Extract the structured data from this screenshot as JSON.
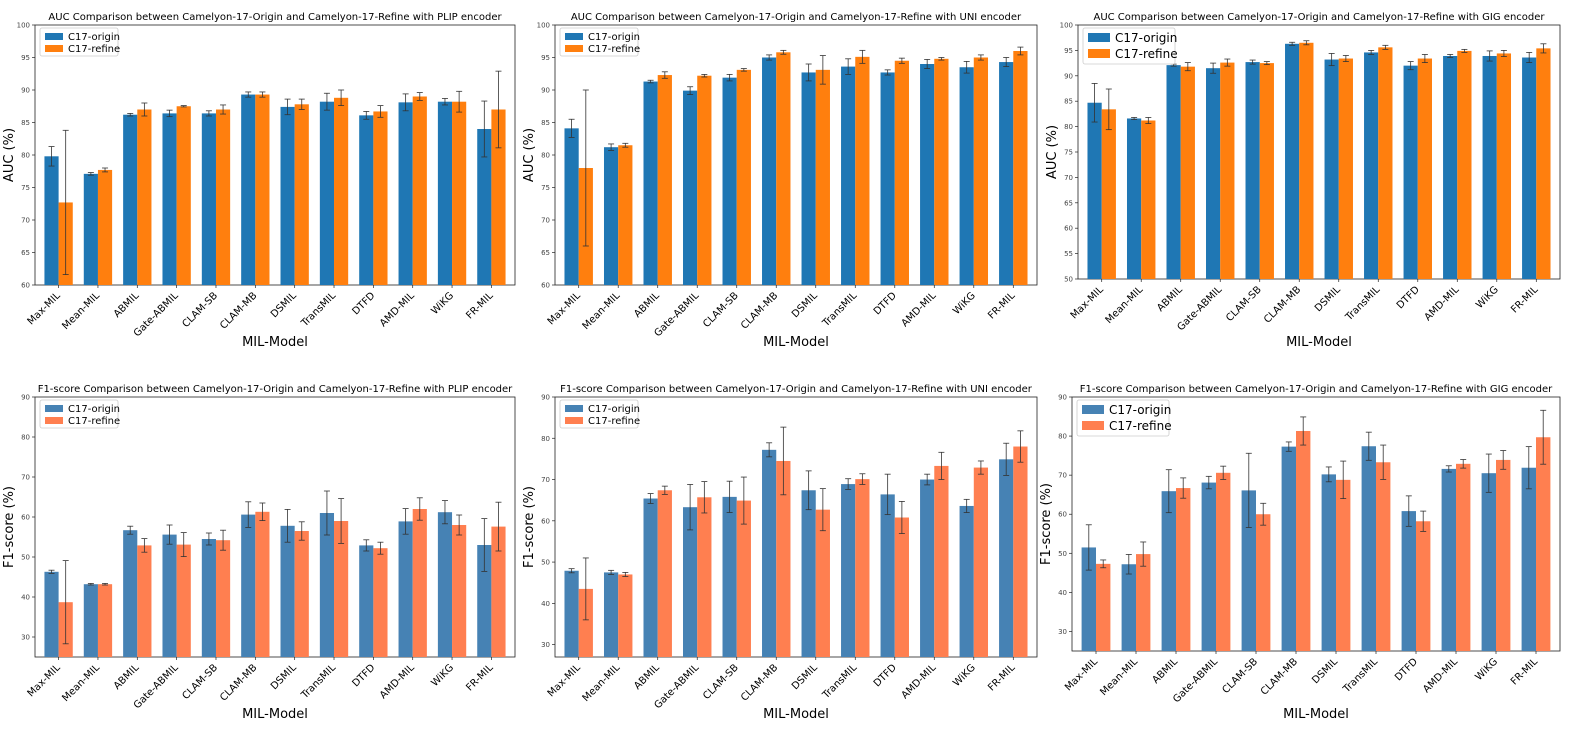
{
  "chart_data": [
    {
      "type": "bar",
      "title": "AUC Comparison between Camelyon-17-Origin and Camelyon-17-Refine with PLIP encoder",
      "xlabel": "MIL-Model",
      "ylabel": "AUC (%)",
      "ylim": [
        60,
        100
      ],
      "yticks": [
        "60",
        "65",
        "70",
        "75",
        "80",
        "85",
        "90",
        "95",
        "100"
      ],
      "ytick_values": [
        60,
        65,
        70,
        75,
        80,
        85,
        90,
        95,
        100
      ],
      "categories": [
        "Max-MIL",
        "Mean-MIL",
        "ABMIL",
        "Gate-ABMIL",
        "CLAM-SB",
        "CLAM-MB",
        "DSMIL",
        "TransMIL",
        "DTFD",
        "AMD-MIL",
        "WiKG",
        "FR-MIL"
      ],
      "legend": "top-left",
      "series": [
        {
          "name": "C17-origin",
          "color": "#1f77b4",
          "values": [
            79.8,
            77.1,
            86.2,
            86.4,
            86.4,
            89.3,
            87.4,
            88.2,
            86.1,
            88.1,
            88.2,
            84.0
          ],
          "errors": [
            1.5,
            0.2,
            0.2,
            0.5,
            0.4,
            0.4,
            1.2,
            1.3,
            0.6,
            1.3,
            0.5,
            4.3
          ]
        },
        {
          "name": "C17-refine",
          "color": "#ff7f0e",
          "values": [
            72.7,
            77.7,
            87.0,
            87.5,
            87.0,
            89.3,
            87.8,
            88.8,
            86.7,
            89.0,
            88.2,
            87.0
          ],
          "errors": [
            11.1,
            0.3,
            1.0,
            0.1,
            0.7,
            0.4,
            0.8,
            1.2,
            0.9,
            0.6,
            1.6,
            5.9
          ]
        }
      ]
    },
    {
      "type": "bar",
      "title": "AUC Comparison between Camelyon-17-Origin and Camelyon-17-Refine with UNI encoder",
      "xlabel": "MIL-Model",
      "ylabel": "AUC (%)",
      "ylim": [
        60,
        100
      ],
      "yticks": [
        "60",
        "65",
        "70",
        "75",
        "80",
        "85",
        "90",
        "95",
        "100"
      ],
      "ytick_values": [
        60,
        65,
        70,
        75,
        80,
        85,
        90,
        95,
        100
      ],
      "categories": [
        "Max-MIL",
        "Mean-MIL",
        "ABMIL",
        "Gate-ABMIL",
        "CLAM-SB",
        "CLAM-MB",
        "DSMIL",
        "TransMIL",
        "DTFD",
        "AMD-MIL",
        "WiKG",
        "FR-MIL"
      ],
      "legend": "top-left",
      "series": [
        {
          "name": "C17-origin",
          "color": "#1f77b4",
          "values": [
            84.1,
            81.2,
            91.3,
            89.9,
            91.9,
            95.0,
            92.7,
            93.6,
            92.7,
            94.0,
            93.5,
            94.3
          ],
          "errors": [
            1.4,
            0.5,
            0.2,
            0.6,
            0.5,
            0.4,
            1.3,
            1.2,
            0.4,
            0.7,
            0.9,
            0.7
          ]
        },
        {
          "name": "C17-refine",
          "color": "#ff7f0e",
          "values": [
            78.0,
            81.5,
            92.3,
            92.2,
            93.1,
            95.8,
            93.1,
            95.1,
            94.5,
            94.8,
            95.0,
            96.0
          ],
          "errors": [
            12.0,
            0.3,
            0.5,
            0.2,
            0.2,
            0.3,
            2.2,
            1.0,
            0.4,
            0.2,
            0.4,
            0.6
          ]
        }
      ]
    },
    {
      "type": "bar",
      "title": "AUC Comparison between Camelyon-17-Origin and Camelyon-17-Refine with GIG encoder",
      "xlabel": "MIL-Model",
      "ylabel": "AUC (%)",
      "ylim": [
        50,
        100
      ],
      "yticks": [
        "50",
        "55",
        "60",
        "65",
        "70",
        "75",
        "80",
        "85",
        "90",
        "95",
        "100"
      ],
      "ytick_values": [
        50,
        55,
        60,
        65,
        70,
        75,
        80,
        85,
        90,
        95,
        100
      ],
      "categories": [
        "Max-MIL",
        "Mean-MIL",
        "ABMIL",
        "Gate-ABMIL",
        "CLAM-SB",
        "CLAM-MB",
        "DSMIL",
        "TransMIL",
        "DTFD",
        "AMD-MIL",
        "WiKG",
        "FR-MIL"
      ],
      "legend": "top-left",
      "series": [
        {
          "name": "C17-origin",
          "color": "#1f77b4",
          "values": [
            84.7,
            81.6,
            92.1,
            91.5,
            92.7,
            96.3,
            93.2,
            94.6,
            92.0,
            93.9,
            93.9,
            93.6
          ],
          "errors": [
            3.8,
            0.2,
            0.2,
            1.0,
            0.4,
            0.3,
            1.2,
            0.4,
            0.8,
            0.3,
            1.0,
            1.0
          ]
        },
        {
          "name": "C17-refine",
          "color": "#ff7f0e",
          "values": [
            83.4,
            81.2,
            91.8,
            92.6,
            92.5,
            96.5,
            93.4,
            95.6,
            93.4,
            94.9,
            94.4,
            95.4
          ],
          "errors": [
            4.0,
            0.6,
            0.8,
            0.7,
            0.3,
            0.4,
            0.6,
            0.4,
            0.8,
            0.3,
            0.6,
            0.9
          ]
        }
      ]
    },
    {
      "type": "bar",
      "title": "F1-score Comparison between Camelyon-17-Origin and Camelyon-17-Refine with PLIP encoder",
      "xlabel": "MIL-Model",
      "ylabel": "F1-score (%)",
      "ylim": [
        25,
        90
      ],
      "yticks": [
        "30",
        "40",
        "50",
        "60",
        "70",
        "80",
        "90"
      ],
      "ytick_values": [
        30,
        40,
        50,
        60,
        70,
        80,
        90
      ],
      "categories": [
        "Max-MIL",
        "Mean-MIL",
        "ABMIL",
        "Gate-ABMIL",
        "CLAM-SB",
        "CLAM-MB",
        "DSMIL",
        "TransMIL",
        "DTFD",
        "AMD-MIL",
        "WiKG",
        "FR-MIL"
      ],
      "legend": "top-left",
      "series": [
        {
          "name": "C17-origin",
          "color": "#4682b4",
          "values": [
            46.3,
            43.2,
            56.7,
            55.6,
            54.5,
            60.6,
            57.8,
            61.0,
            52.9,
            58.9,
            61.2,
            53.0
          ],
          "errors": [
            0.4,
            0.2,
            1.0,
            2.4,
            1.5,
            3.2,
            4.1,
            5.5,
            1.4,
            3.2,
            2.9,
            6.6
          ]
        },
        {
          "name": "C17-refine",
          "color": "#ff7f50",
          "values": [
            38.7,
            43.2,
            52.9,
            53.1,
            54.2,
            61.3,
            56.5,
            59.0,
            52.2,
            62.0,
            58.0,
            57.6
          ],
          "errors": [
            10.4,
            0.2,
            1.7,
            3.0,
            2.5,
            2.2,
            2.3,
            5.6,
            1.5,
            2.8,
            2.5,
            6.1
          ]
        }
      ]
    },
    {
      "type": "bar",
      "title": "F1-score Comparison between Camelyon-17-Origin and Camelyon-17-Refine with UNI encoder",
      "xlabel": "MIL-Model",
      "ylabel": "F1-score (%)",
      "ylim": [
        27,
        90
      ],
      "yticks": [
        "30",
        "40",
        "50",
        "60",
        "70",
        "80",
        "90"
      ],
      "ytick_values": [
        30,
        40,
        50,
        60,
        70,
        80,
        90
      ],
      "categories": [
        "Max-MIL",
        "Mean-MIL",
        "ABMIL",
        "Gate-ABMIL",
        "CLAM-SB",
        "CLAM-MB",
        "DSMIL",
        "TransMIL",
        "DTFD",
        "AMD-MIL",
        "WiKG",
        "FR-MIL"
      ],
      "legend": "top-left",
      "series": [
        {
          "name": "C17-origin",
          "color": "#4682b4",
          "values": [
            47.9,
            47.5,
            65.4,
            63.3,
            65.8,
            77.2,
            67.4,
            68.9,
            66.4,
            70.0,
            63.6,
            74.9
          ],
          "errors": [
            0.5,
            0.5,
            1.2,
            5.5,
            3.8,
            1.7,
            4.7,
            1.3,
            4.9,
            1.3,
            1.6,
            3.9
          ]
        },
        {
          "name": "C17-refine",
          "color": "#ff7f50",
          "values": [
            43.5,
            47.0,
            67.4,
            65.7,
            64.9,
            74.5,
            62.7,
            70.1,
            60.8,
            73.3,
            72.9,
            78.0
          ],
          "errors": [
            7.5,
            0.5,
            1.0,
            3.8,
            5.7,
            8.2,
            5.1,
            1.3,
            3.9,
            3.3,
            1.6,
            3.8
          ]
        }
      ]
    },
    {
      "type": "bar",
      "title": "F1-score Comparison between Camelyon-17-Origin and Camelyon-17-Refine with GIG encoder",
      "xlabel": "MIL-Model",
      "ylabel": "F1-score (%)",
      "ylim": [
        25,
        90
      ],
      "yticks": [
        "30",
        "40",
        "50",
        "60",
        "70",
        "80",
        "90"
      ],
      "ytick_values": [
        30,
        40,
        50,
        60,
        70,
        80,
        90
      ],
      "categories": [
        "Max-MIL",
        "Mean-MIL",
        "ABMIL",
        "Gate-ABMIL",
        "CLAM-SB",
        "CLAM-MB",
        "DSMIL",
        "TransMIL",
        "DTFD",
        "AMD-MIL",
        "WiKG",
        "FR-MIL"
      ],
      "legend": "top-left",
      "series": [
        {
          "name": "C17-origin",
          "color": "#4682b4",
          "values": [
            51.5,
            47.2,
            65.9,
            68.1,
            66.1,
            77.3,
            70.2,
            77.4,
            60.8,
            71.6,
            70.5,
            71.9
          ],
          "errors": [
            5.8,
            2.5,
            5.5,
            1.6,
            9.5,
            1.2,
            1.9,
            3.6,
            3.9,
            0.8,
            4.9,
            5.4
          ]
        },
        {
          "name": "C17-refine",
          "color": "#ff7f50",
          "values": [
            47.3,
            49.8,
            66.7,
            70.6,
            60.0,
            81.3,
            68.8,
            73.3,
            58.2,
            72.9,
            73.9,
            79.7
          ],
          "errors": [
            1.0,
            3.1,
            2.6,
            1.7,
            2.8,
            3.6,
            4.8,
            4.4,
            2.6,
            1.1,
            2.4,
            6.9
          ]
        }
      ]
    }
  ]
}
